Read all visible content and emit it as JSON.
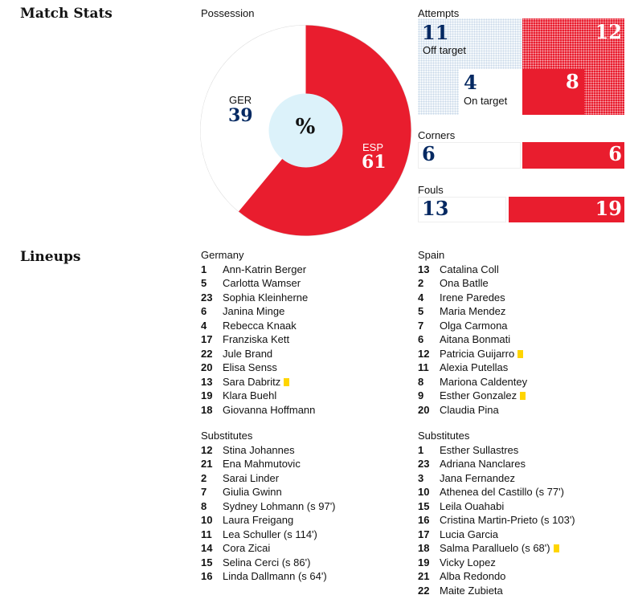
{
  "match_stats_title": "Match Stats",
  "possession": {
    "label": "Possession",
    "center_symbol": "%",
    "home": {
      "code": "GER",
      "value": "39",
      "pct": 39,
      "color": "#ffffff"
    },
    "away": {
      "code": "ESP",
      "value": "61",
      "pct": 61,
      "color": "#e91d2e"
    }
  },
  "attempts": {
    "label": "Attempts",
    "off_target": {
      "label": "Off target",
      "home": "11",
      "away": "12"
    },
    "on_target": {
      "label": "On target",
      "home": "4",
      "away": "8"
    }
  },
  "corners": {
    "label": "Corners",
    "home": "6",
    "away": "6"
  },
  "fouls": {
    "label": "Fouls",
    "home": "13",
    "away": "19"
  },
  "lineups_title": "Lineups",
  "home_team": {
    "name": "Germany",
    "starters": [
      {
        "num": "1",
        "name": "Ann-Katrin Berger",
        "card": false
      },
      {
        "num": "5",
        "name": "Carlotta Wamser",
        "card": false
      },
      {
        "num": "23",
        "name": "Sophia Kleinherne",
        "card": false
      },
      {
        "num": "6",
        "name": "Janina Minge",
        "card": false
      },
      {
        "num": "4",
        "name": "Rebecca Knaak",
        "card": false
      },
      {
        "num": "17",
        "name": "Franziska Kett",
        "card": false
      },
      {
        "num": "22",
        "name": "Jule Brand",
        "card": false
      },
      {
        "num": "20",
        "name": "Elisa Senss",
        "card": false
      },
      {
        "num": "13",
        "name": "Sara Dabritz",
        "card": true
      },
      {
        "num": "19",
        "name": "Klara Buehl",
        "card": false
      },
      {
        "num": "18",
        "name": "Giovanna Hoffmann",
        "card": false
      }
    ],
    "subs_label": "Substitutes",
    "subs": [
      {
        "num": "12",
        "name": "Stina Johannes",
        "card": false
      },
      {
        "num": "21",
        "name": "Ena Mahmutovic",
        "card": false
      },
      {
        "num": "2",
        "name": "Sarai Linder",
        "card": false
      },
      {
        "num": "7",
        "name": "Giulia Gwinn",
        "card": false
      },
      {
        "num": "8",
        "name": "Sydney Lohmann (s 97')",
        "card": false
      },
      {
        "num": "10",
        "name": "Laura Freigang",
        "card": false
      },
      {
        "num": "11",
        "name": "Lea Schuller (s 114')",
        "card": false
      },
      {
        "num": "14",
        "name": "Cora Zicai",
        "card": false
      },
      {
        "num": "15",
        "name": "Selina Cerci (s 86')",
        "card": false
      },
      {
        "num": "16",
        "name": "Linda Dallmann (s 64')",
        "card": false
      }
    ]
  },
  "away_team": {
    "name": "Spain",
    "starters": [
      {
        "num": "13",
        "name": "Catalina Coll",
        "card": false
      },
      {
        "num": "2",
        "name": "Ona Batlle",
        "card": false
      },
      {
        "num": "4",
        "name": "Irene Paredes",
        "card": false
      },
      {
        "num": "5",
        "name": "Maria Mendez",
        "card": false
      },
      {
        "num": "7",
        "name": "Olga Carmona",
        "card": false
      },
      {
        "num": "6",
        "name": "Aitana Bonmati",
        "card": false
      },
      {
        "num": "12",
        "name": "Patricia Guijarro",
        "card": true
      },
      {
        "num": "11",
        "name": "Alexia Putellas",
        "card": false
      },
      {
        "num": "8",
        "name": "Mariona Caldentey",
        "card": false
      },
      {
        "num": "9",
        "name": "Esther Gonzalez",
        "card": true
      },
      {
        "num": "20",
        "name": "Claudia Pina",
        "card": false
      }
    ],
    "subs_label": "Substitutes",
    "subs": [
      {
        "num": "1",
        "name": "Esther Sullastres",
        "card": false
      },
      {
        "num": "23",
        "name": "Adriana Nanclares",
        "card": false
      },
      {
        "num": "3",
        "name": "Jana Fernandez",
        "card": false
      },
      {
        "num": "10",
        "name": "Athenea del Castillo (s 77')",
        "card": false
      },
      {
        "num": "15",
        "name": "Leila Ouahabi",
        "card": false
      },
      {
        "num": "16",
        "name": "Cristina Martin-Prieto (s 103')",
        "card": false
      },
      {
        "num": "17",
        "name": "Lucia Garcia",
        "card": false
      },
      {
        "num": "18",
        "name": "Salma Paralluelo (s 68')",
        "card": true
      },
      {
        "num": "19",
        "name": "Vicky Lopez",
        "card": false
      },
      {
        "num": "21",
        "name": "Alba Redondo",
        "card": false
      },
      {
        "num": "22",
        "name": "Maite Zubieta",
        "card": false
      }
    ]
  }
}
